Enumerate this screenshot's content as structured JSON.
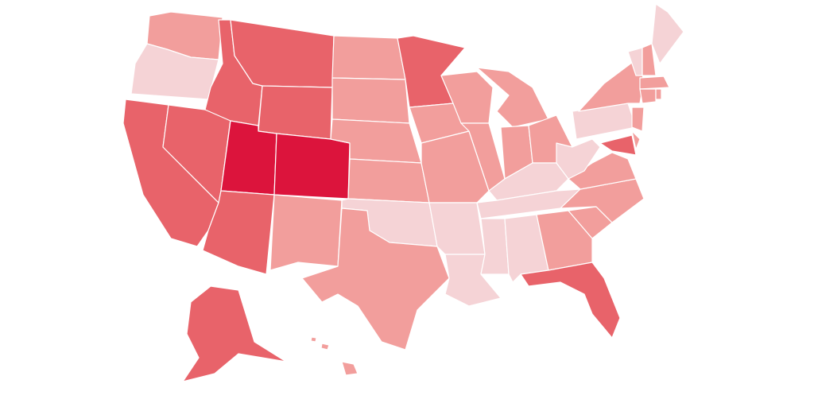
{
  "map": {
    "fills": [
      "#dc143c",
      "#e8636a",
      "#f29e9c",
      "#f5d3d6"
    ]
  }
}
